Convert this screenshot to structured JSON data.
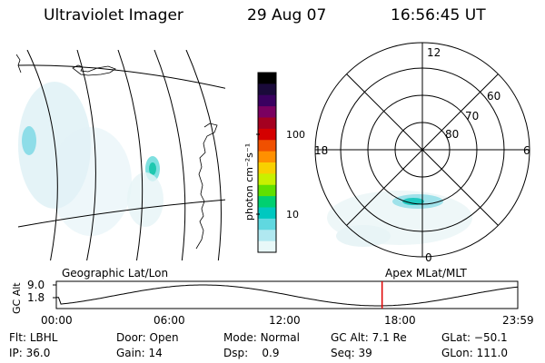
{
  "header": {
    "title": "Ultraviolet Imager",
    "date": "29 Aug 07",
    "time": "16:56:45 UT"
  },
  "colorbar": {
    "label": "photon cm⁻²s⁻¹",
    "ticks": [
      "100",
      "10"
    ],
    "colors": [
      "#000000",
      "#1a0a3a",
      "#3a0060",
      "#7a0060",
      "#a40020",
      "#d40000",
      "#f05000",
      "#ff9000",
      "#f8d000",
      "#c8f000",
      "#60e000",
      "#00d070",
      "#00c8c0",
      "#60d8e0",
      "#b0e8f0",
      "#e8f8f8"
    ]
  },
  "polar": {
    "lat_labels": [
      "60",
      "70",
      "80"
    ],
    "mlt_labels": {
      "top": "12",
      "bottom": "0",
      "left": "18",
      "right": "6"
    }
  },
  "timeline": {
    "y_axis_label": "GC Alt",
    "y_ticks": [
      "9.0",
      "1.8"
    ],
    "left_caption": "Geographic Lat/Lon",
    "right_caption": "Apex MLat/MLT",
    "x_ticks": [
      "00:00",
      "06:00",
      "12:00",
      "18:00",
      "23:59"
    ],
    "current_marker_fraction": 0.706
  },
  "status": {
    "row1": [
      {
        "label": "Flt:",
        "value": "LBHL"
      },
      {
        "label": "Door:",
        "value": "Open"
      },
      {
        "label": "Mode:",
        "value": "Normal"
      },
      {
        "label": "GC Alt:",
        "value": "7.1 Re"
      },
      {
        "label": "GLat:",
        "value": "−50.1"
      }
    ],
    "row2": [
      {
        "label": "IP:",
        "value": "36.0"
      },
      {
        "label": "Gain:",
        "value": "14"
      },
      {
        "label": "Dsp:",
        "value": "0.9"
      },
      {
        "label": "Seq:",
        "value": "39"
      },
      {
        "label": "GLon:",
        "value": "111.0"
      }
    ]
  }
}
